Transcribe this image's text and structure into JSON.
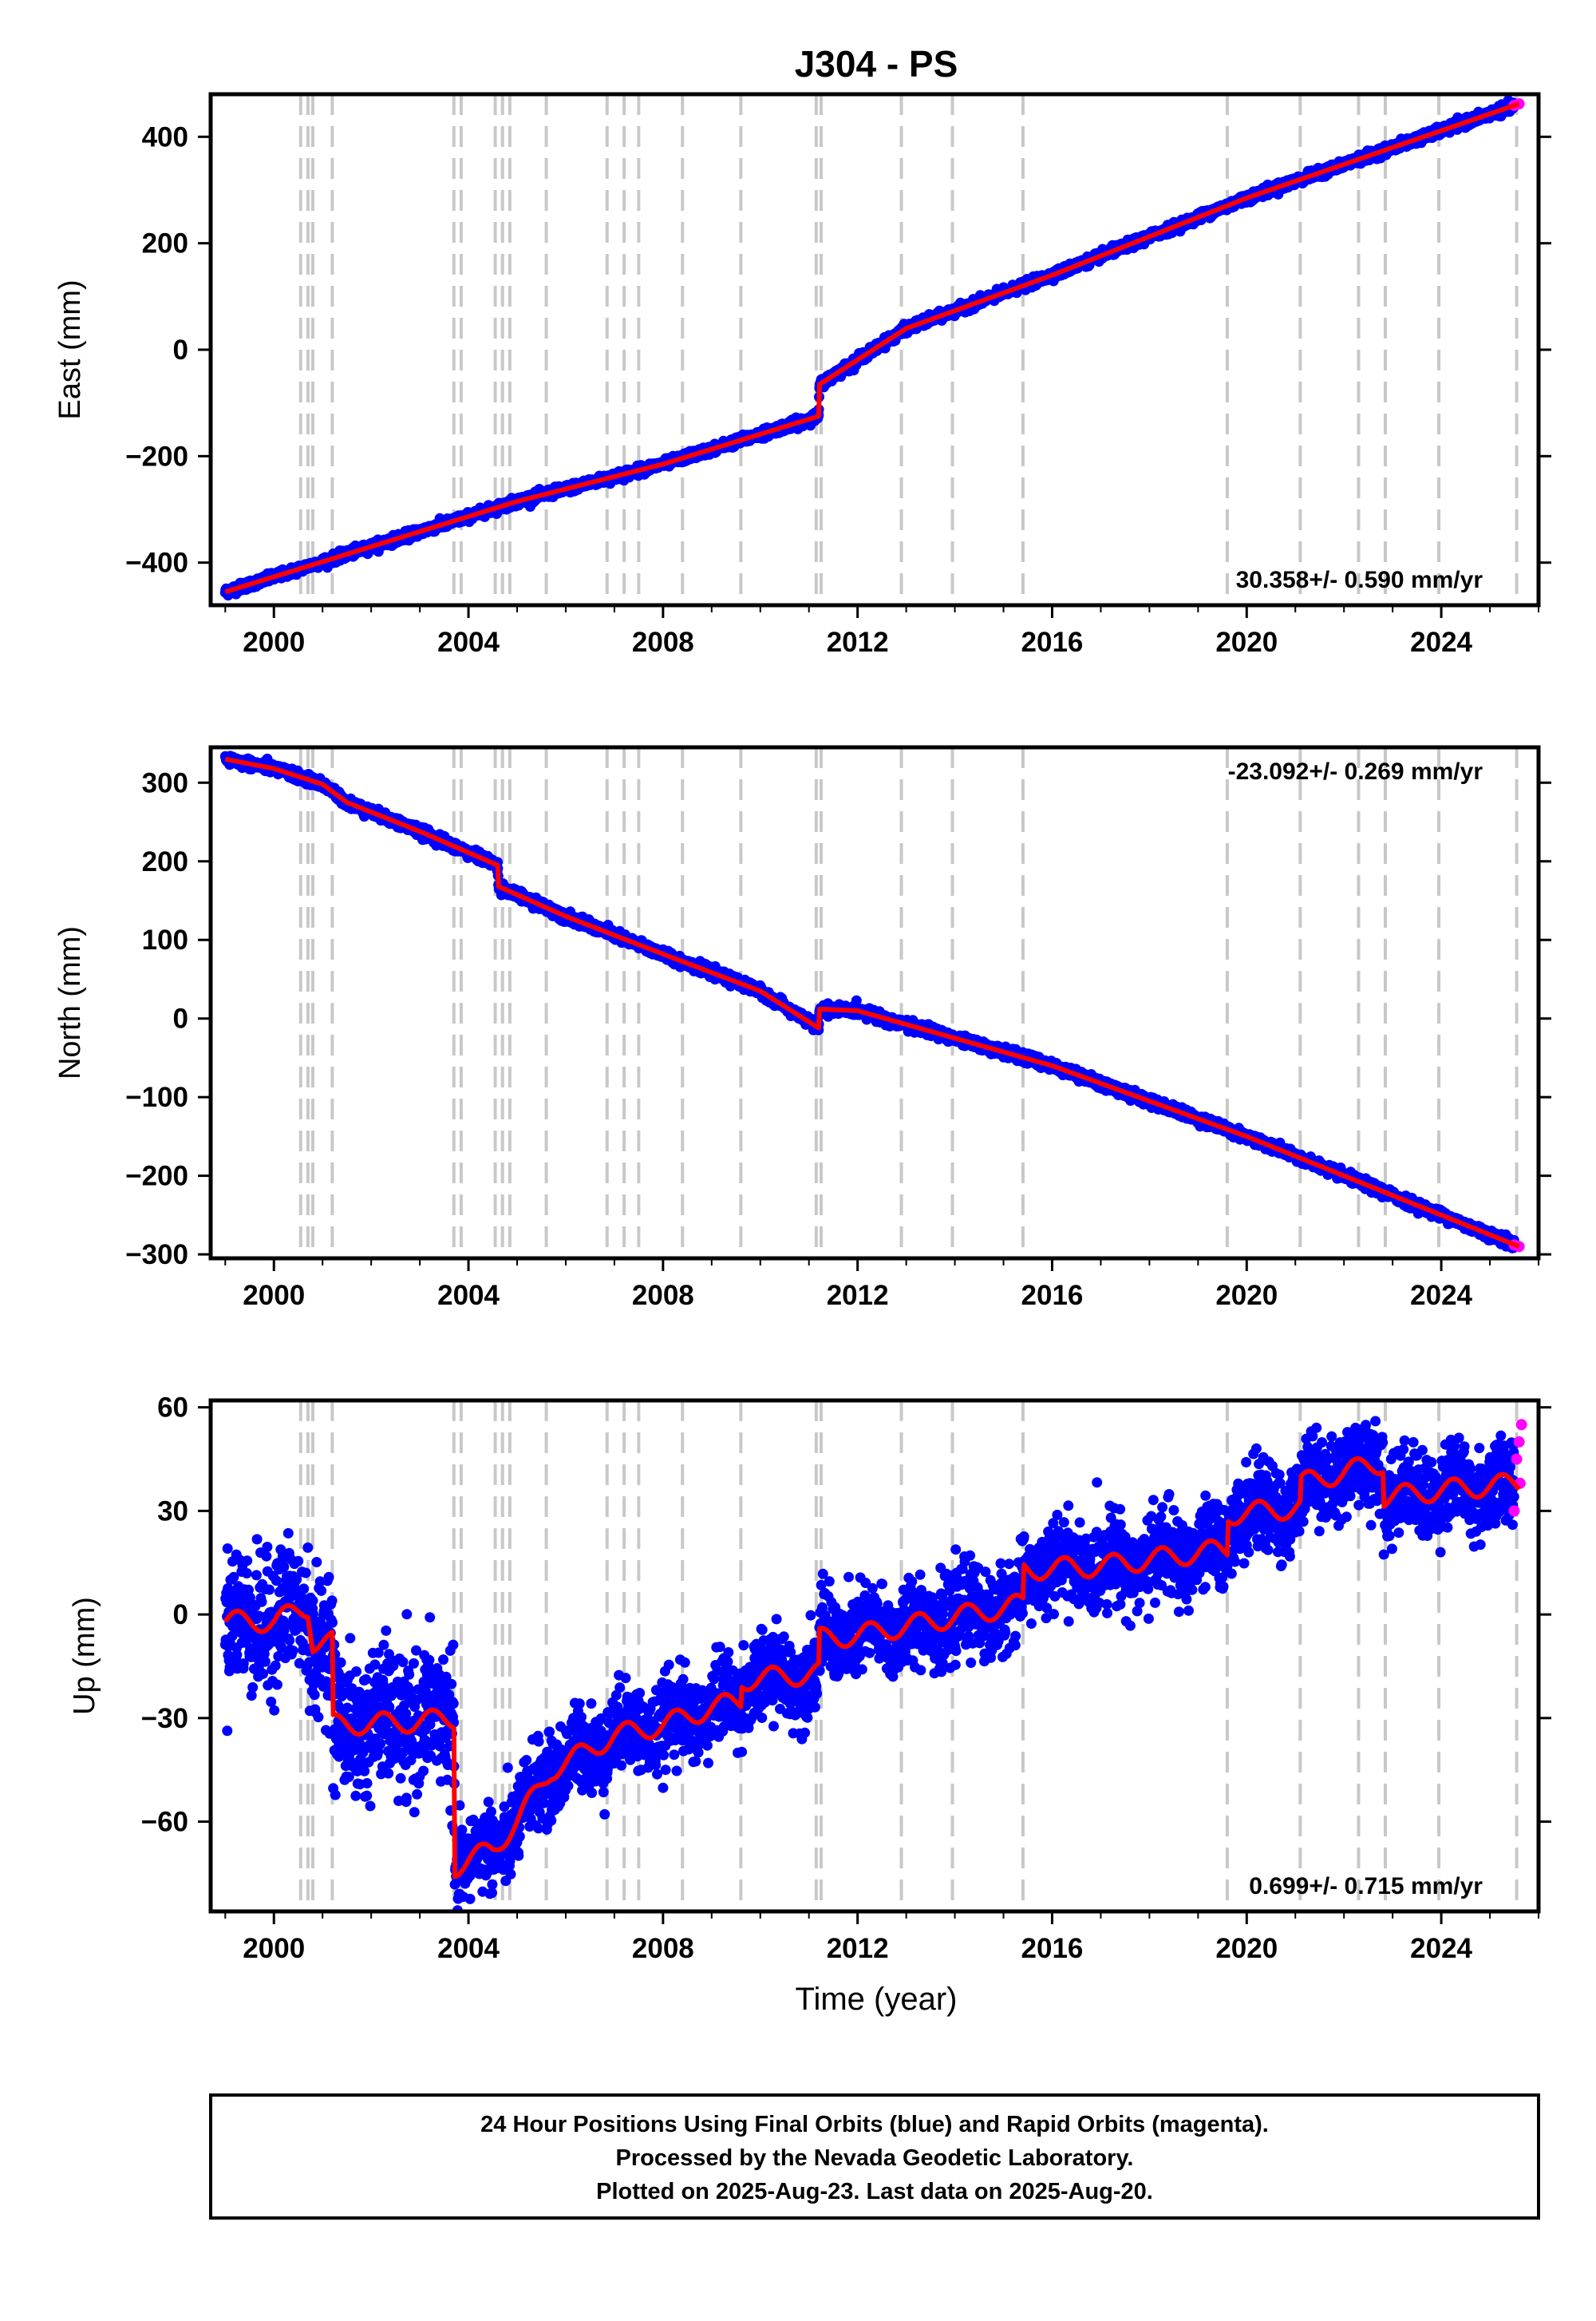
{
  "figure": {
    "title": "J304 - PS",
    "time_axis_label": "Time (year)",
    "footer_lines": [
      "24 Hour Positions Using Final Orbits (blue) and Rapid Orbits (magenta).",
      "Processed by the Nevada Geodetic Laboratory.",
      "Plotted on 2025-Aug-23. Last data on 2025-Aug-20."
    ]
  },
  "colors": {
    "final_orbits": "#0000ff",
    "rapid_orbits": "#ff00ff",
    "model_fit": "#ff0000",
    "event_lines": "#c8c8c8",
    "frame": "#000000"
  },
  "chart_data": [
    {
      "type": "scatter",
      "component": "East",
      "ylabel": "East (mm)",
      "rate_label": "30.358+/- 0.590 mm/yr",
      "rate_position": "bottom-right",
      "xlim": [
        1998.7,
        2026.0
      ],
      "ylim": [
        -480,
        480
      ],
      "xticks": [
        2000,
        2004,
        2008,
        2012,
        2016,
        2020,
        2024
      ],
      "xtick_labels": [
        "2000",
        "2004",
        "2008",
        "2012",
        "2016",
        "2020",
        "2024"
      ],
      "yticks": [
        -400,
        -200,
        0,
        200,
        400
      ],
      "ytick_labels": [
        "−400",
        "−200",
        "0",
        "200",
        "400"
      ],
      "fit_line": {
        "x": [
          1999.0,
          2002.0,
          2005.0,
          2008.0,
          2011.2,
          2011.22,
          2013.0,
          2016.0,
          2020.0,
          2025.6
        ],
        "y": [
          -455,
          -370,
          -285,
          -215,
          -125,
          -65,
          40,
          140,
          285,
          462
        ]
      },
      "final_orbits_noise_mm": 4,
      "rapid_orbits": {
        "x": [
          2025.5,
          2025.6
        ],
        "y": [
          459,
          462
        ]
      }
    },
    {
      "type": "scatter",
      "component": "North",
      "ylabel": "North (mm)",
      "rate_label": "-23.092+/- 0.269 mm/yr",
      "rate_position": "top-right",
      "xlim": [
        1998.7,
        2026.0
      ],
      "ylim": [
        -305,
        345
      ],
      "xticks": [
        2000,
        2004,
        2008,
        2012,
        2016,
        2020,
        2024
      ],
      "xtick_labels": [
        "2000",
        "2004",
        "2008",
        "2012",
        "2016",
        "2020",
        "2024"
      ],
      "yticks": [
        -300,
        -200,
        -100,
        0,
        100,
        200,
        300
      ],
      "ytick_labels": [
        "−300",
        "−200",
        "−100",
        "0",
        "100",
        "200",
        "300"
      ],
      "fit_line": {
        "x": [
          1999.0,
          2000.0,
          2001.0,
          2001.5,
          2003.0,
          2004.6,
          2004.62,
          2006.0,
          2008.0,
          2010.0,
          2011.2,
          2011.22,
          2012.0,
          2016.0,
          2020.0,
          2025.6
        ],
        "y": [
          330,
          318,
          298,
          275,
          238,
          195,
          168,
          130,
          82,
          35,
          -12,
          12,
          10,
          -60,
          -150,
          -290
        ]
      },
      "final_orbits_noise_mm": 3,
      "rapid_orbits": {
        "x": [
          2025.5,
          2025.6
        ],
        "y": [
          -288,
          -290
        ]
      }
    },
    {
      "type": "scatter",
      "component": "Up",
      "ylabel": "Up (mm)",
      "rate_label": "0.699+/- 0.715 mm/yr",
      "rate_position": "bottom-right",
      "xlim": [
        1998.7,
        2026.0
      ],
      "ylim": [
        -86,
        62
      ],
      "xticks": [
        2000,
        2004,
        2008,
        2012,
        2016,
        2020,
        2024
      ],
      "xtick_labels": [
        "2000",
        "2004",
        "2008",
        "2012",
        "2016",
        "2020",
        "2024"
      ],
      "yticks": [
        -60,
        -30,
        0,
        30,
        60
      ],
      "ytick_labels": [
        "−60",
        "−30",
        "0",
        "30",
        "60"
      ],
      "fit_line": {
        "x": [
          1999.0,
          2000.0,
          2000.7,
          2000.8,
          2001.2,
          2001.22,
          2003.0,
          2003.7,
          2003.72,
          2004.5,
          2005.0,
          2005.7,
          2006.0,
          2007.0,
          2008.0,
          2009.0,
          2009.6,
          2009.62,
          2011.2,
          2011.22,
          2012.0,
          2015.4,
          2015.42,
          2017.0,
          2019.6,
          2019.62,
          2021.1,
          2021.12,
          2022.5,
          2022.8,
          2022.82,
          2024.0,
          2025.6
        ],
        "y": [
          -2,
          -2,
          2,
          -8,
          -8,
          -32,
          -31,
          -30,
          -73,
          -68,
          -60,
          -45,
          -43,
          -35,
          -32,
          -27,
          -25,
          -19,
          -17,
          -7,
          -6,
          3,
          13,
          14,
          19,
          29,
          31,
          38,
          43,
          44,
          34,
          36,
          38
        ]
      },
      "seasonal_amplitude_mm": 3,
      "final_orbits_noise_mm": 6,
      "rapid_orbits": {
        "x": [
          2025.5,
          2025.55,
          2025.6,
          2025.62,
          2025.65
        ],
        "y": [
          30,
          45,
          50,
          38,
          55
        ]
      }
    }
  ],
  "event_lines_x": [
    2000.55,
    2000.7,
    2000.8,
    2001.2,
    2003.7,
    2003.85,
    2004.55,
    2004.7,
    2004.85,
    2005.6,
    2006.85,
    2007.2,
    2007.5,
    2008.4,
    2009.6,
    2011.15,
    2011.25,
    2012.9,
    2013.95,
    2015.4,
    2019.6,
    2021.1,
    2022.3,
    2022.85,
    2023.95,
    2025.55
  ]
}
